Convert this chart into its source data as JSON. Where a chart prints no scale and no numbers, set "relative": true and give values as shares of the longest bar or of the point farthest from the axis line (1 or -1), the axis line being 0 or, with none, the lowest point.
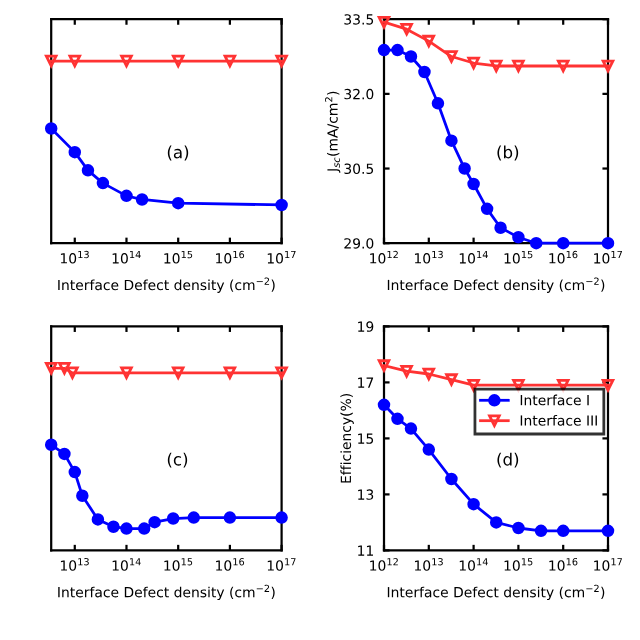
{
  "chart_data": [
    {
      "type": "line",
      "title": "(a)",
      "xlabel": "Interface Defect density (cm$^{−2}$)",
      "log": "x",
      "relative": true,
      "xlim": [
        3500000000000.0,
        1e+17
      ],
      "xticks": [
        {
          "value": 10000000000000.0,
          "label": "10$^{13}$"
        },
        {
          "value": 100000000000000.0,
          "label": "10$^{14}$"
        },
        {
          "value": 1000000000000000.0,
          "label": "10$^{15}$"
        },
        {
          "value": 1e+16,
          "label": "10$^{16}$"
        },
        {
          "value": 1e+17,
          "label": "10$^{17}$"
        }
      ],
      "legend": false,
      "series": [
        {
          "color": "#0000ff",
          "marker": "circle",
          "x": [
            3500000000000.0,
            10000000000000.0,
            18000000000000.0,
            35000000000000.0,
            100000000000000.0,
            200000000000000.0,
            1000000000000000.0,
            1e+17
          ],
          "values": [
            0.63,
            0.5,
            0.4,
            0.33,
            0.26,
            0.24,
            0.22,
            0.21
          ]
        },
        {
          "color": "#ff3333",
          "marker": "triangle",
          "x": [
            3500000000000.0,
            10000000000000.0,
            100000000000000.0,
            1000000000000000.0,
            1e+16,
            1e+17
          ],
          "values": [
            1.0,
            1.0,
            1.0,
            1.0,
            1.0,
            1.0
          ]
        }
      ]
    },
    {
      "type": "line",
      "title": "(b)",
      "xlabel": "Interface Defect density (cm$^{−2}$)",
      "ylabel": "J$_{sc}$(mA/cm$^{2}$)",
      "log": "x",
      "xlim": [
        1000000000000.0,
        1e+17
      ],
      "xticks": [
        {
          "value": 1000000000000.0,
          "label": "10$^{12}$"
        },
        {
          "value": 10000000000000.0,
          "label": "10$^{13}$"
        },
        {
          "value": 100000000000000.0,
          "label": "10$^{14}$"
        },
        {
          "value": 1000000000000000.0,
          "label": "10$^{15}$"
        },
        {
          "value": 1e+16,
          "label": "10$^{16}$"
        },
        {
          "value": 1e+17,
          "label": "10$^{17}$"
        }
      ],
      "ylim": [
        29.0,
        33.5
      ],
      "yticks": [
        {
          "value": 29.0,
          "label": "29.0"
        },
        {
          "value": 30.5,
          "label": "30.5"
        },
        {
          "value": 32.0,
          "label": "32.0"
        },
        {
          "value": 33.5,
          "label": "33.5"
        }
      ],
      "legend": false,
      "series": [
        {
          "color": "#0000ff",
          "marker": "circle",
          "x": [
            1000000000000.0,
            2000000000000.0,
            4000000000000.0,
            8000000000000.0,
            16000000000000.0,
            32000000000000.0,
            63000000000000.0,
            100000000000000.0,
            200000000000000.0,
            400000000000000.0,
            1000000000000000.0,
            2500000000000000.0,
            1e+16,
            1e+17
          ],
          "values": [
            32.88,
            32.88,
            32.75,
            32.44,
            31.81,
            31.06,
            30.5,
            30.19,
            29.69,
            29.31,
            29.12,
            29.0,
            29.0,
            29.0
          ]
        },
        {
          "color": "#ff3333",
          "marker": "triangle",
          "x": [
            1000000000000.0,
            3200000000000.0,
            10000000000000.0,
            32000000000000.0,
            100000000000000.0,
            320000000000000.0,
            1000000000000000.0,
            1e+16,
            1e+17
          ],
          "values": [
            33.44,
            33.3,
            33.06,
            32.75,
            32.62,
            32.56,
            32.56,
            32.56,
            32.56
          ]
        }
      ]
    },
    {
      "type": "line",
      "title": "(c)",
      "xlabel": "Interface Defect density (cm$^{−2}$)",
      "log": "x",
      "relative": true,
      "xlim": [
        3500000000000.0,
        1e+17
      ],
      "xticks": [
        {
          "value": 10000000000000.0,
          "label": "10$^{13}$"
        },
        {
          "value": 100000000000000.0,
          "label": "10$^{14}$"
        },
        {
          "value": 1000000000000000.0,
          "label": "10$^{15}$"
        },
        {
          "value": 1e+16,
          "label": "10$^{16}$"
        },
        {
          "value": 1e+17,
          "label": "10$^{17}$"
        }
      ],
      "legend": false,
      "series": [
        {
          "color": "#0000ff",
          "marker": "circle",
          "x": [
            3500000000000.0,
            6300000000000.0,
            10000000000000.0,
            14000000000000.0,
            28000000000000.0,
            56000000000000.0,
            100000000000000.0,
            220000000000000.0,
            350000000000000.0,
            800000000000000.0,
            2000000000000000.0,
            1e+16,
            1e+17
          ],
          "values": [
            0.58,
            0.53,
            0.43,
            0.3,
            0.17,
            0.13,
            0.12,
            0.12,
            0.155,
            0.175,
            0.18,
            0.18,
            0.18
          ]
        },
        {
          "color": "#ff3333",
          "marker": "triangle",
          "x": [
            3500000000000.0,
            6300000000000.0,
            9000000000000.0,
            100000000000000.0,
            1000000000000000.0,
            1e+16,
            1e+17
          ],
          "values": [
            1.0,
            1.0,
            0.975,
            0.975,
            0.975,
            0.975,
            0.975
          ]
        }
      ]
    },
    {
      "type": "line",
      "title": "(d)",
      "xlabel": "Interface Defect density (cm$^{−2}$)",
      "ylabel": "Efficiency(%)",
      "log": "x",
      "xlim": [
        1000000000000.0,
        1e+17
      ],
      "xticks": [
        {
          "value": 1000000000000.0,
          "label": "10$^{12}$"
        },
        {
          "value": 10000000000000.0,
          "label": "10$^{13}$"
        },
        {
          "value": 100000000000000.0,
          "label": "10$^{14}$"
        },
        {
          "value": 1000000000000000.0,
          "label": "10$^{15}$"
        },
        {
          "value": 1e+16,
          "label": "10$^{16}$"
        },
        {
          "value": 1e+17,
          "label": "10$^{17}$"
        }
      ],
      "ylim": [
        11,
        19
      ],
      "yticks": [
        11,
        13,
        15,
        17,
        19
      ],
      "legend": "right",
      "series": [
        {
          "name": "Interface I",
          "color": "#0000ff",
          "marker": "circle",
          "x": [
            1000000000000.0,
            2000000000000.0,
            4000000000000.0,
            10000000000000.0,
            32000000000000.0,
            100000000000000.0,
            320000000000000.0,
            1000000000000000.0,
            3200000000000000.0,
            1e+16,
            1e+17
          ],
          "values": [
            16.2,
            15.7,
            15.35,
            14.6,
            13.55,
            12.65,
            12.0,
            11.8,
            11.7,
            11.7,
            11.7
          ]
        },
        {
          "name": "Interface III",
          "color": "#ff3333",
          "marker": "triangle",
          "x": [
            1000000000000.0,
            3200000000000.0,
            10000000000000.0,
            32000000000000.0,
            100000000000000.0,
            1000000000000000.0,
            1e+16,
            1e+17
          ],
          "values": [
            17.6,
            17.4,
            17.3,
            17.1,
            16.9,
            16.9,
            16.9,
            16.9
          ]
        }
      ]
    }
  ]
}
